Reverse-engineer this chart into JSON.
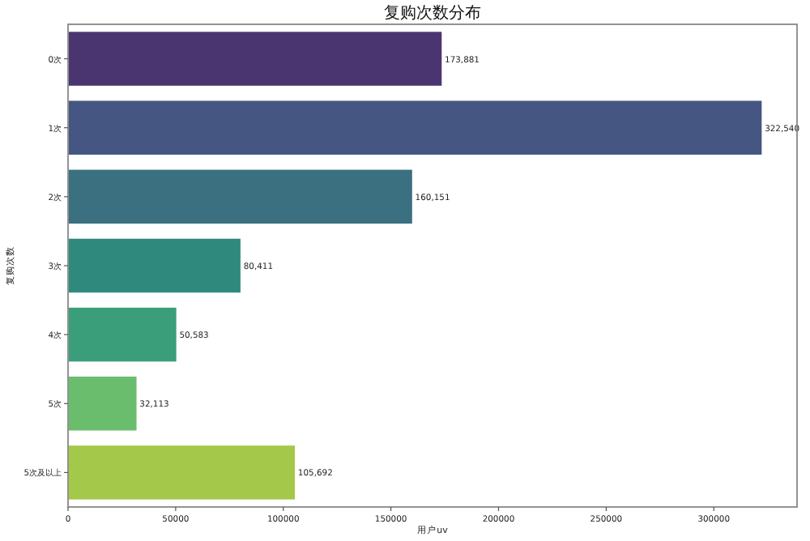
{
  "chart_data": {
    "type": "bar",
    "orientation": "horizontal",
    "title": "复购次数分布",
    "xlabel": "用户uv",
    "ylabel": "复购次数",
    "categories": [
      "0次",
      "1次",
      "2次",
      "3次",
      "4次",
      "5次",
      "5次及以上"
    ],
    "values": [
      173881,
      322540,
      160151,
      80411,
      50583,
      32113,
      105692
    ],
    "colors": [
      "#4b3571",
      "#455682",
      "#3a707f",
      "#2f8a7d",
      "#3b9e7a",
      "#6abd6d",
      "#a4c84a"
    ],
    "value_labels": [
      "173,881",
      "322,540",
      "160,151",
      "80,411",
      "50,583",
      "32,113",
      "105,692"
    ],
    "xlim": [
      0,
      338667
    ],
    "xticks": [
      0,
      50000,
      100000,
      150000,
      200000,
      250000,
      300000
    ]
  }
}
